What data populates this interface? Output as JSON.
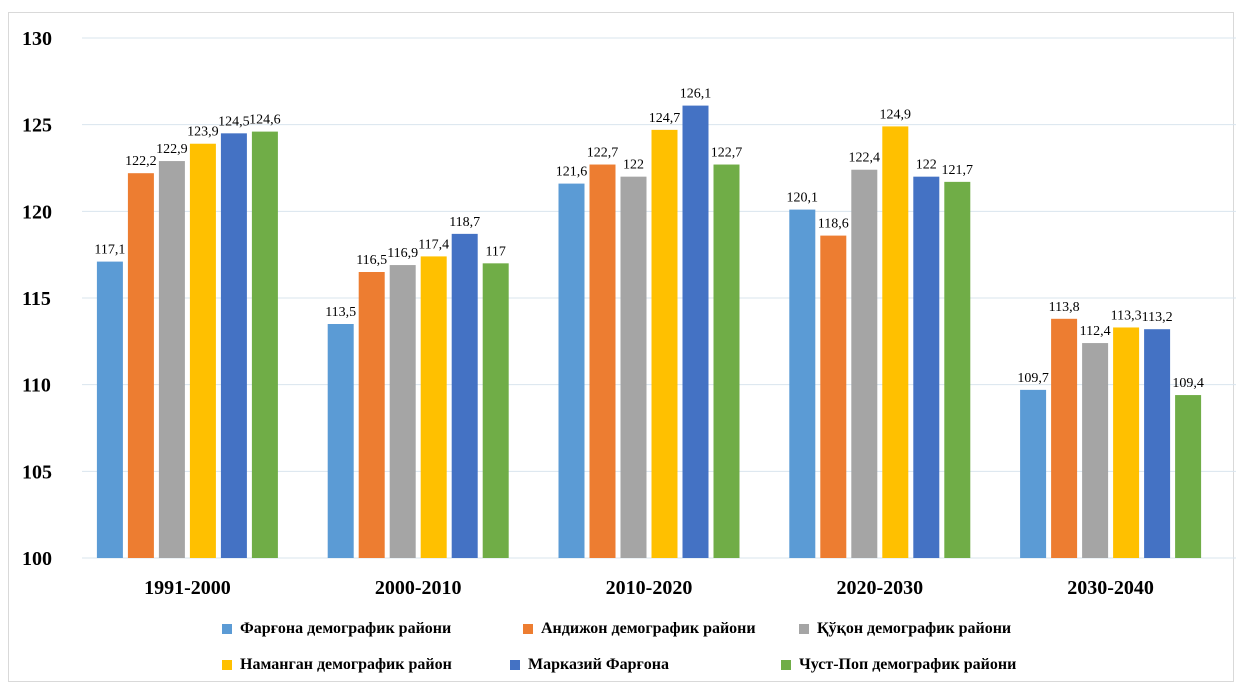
{
  "chart_data": {
    "type": "bar",
    "categories": [
      "1991-2000",
      "2000-2010",
      "2010-2020",
      "2020-2030",
      "2030-2040"
    ],
    "ylim": [
      100,
      130
    ],
    "yticks": [
      "100",
      "105",
      "110",
      "115",
      "120",
      "125",
      "130"
    ],
    "grid": true,
    "legend_position": "bottom",
    "series": [
      {
        "name": "Фарғона демографик райони",
        "color": "#5b9bd5",
        "values": [
          117.1,
          113.5,
          121.6,
          120.1,
          109.7
        ],
        "labels": [
          "117,1",
          "113,5",
          "121,6",
          "120,1",
          "109,7"
        ]
      },
      {
        "name": "Андижон демографик райони",
        "color": "#ed7d31",
        "values": [
          122.2,
          116.5,
          122.7,
          118.6,
          113.8
        ],
        "labels": [
          "122,2",
          "116,5",
          "122,7",
          "118,6",
          "113,8"
        ]
      },
      {
        "name": "Қўқон демографик райони",
        "color": "#a5a5a5",
        "values": [
          122.9,
          116.9,
          122,
          122.4,
          112.4
        ],
        "labels": [
          "122,9",
          "116,9",
          "122",
          "122,4",
          "112,4"
        ]
      },
      {
        "name": "Наманган демографик район",
        "color": "#ffc000",
        "values": [
          123.9,
          117.4,
          124.7,
          124.9,
          113.3
        ],
        "labels": [
          "123,9",
          "117,4",
          "124,7",
          "124,9",
          "113,3"
        ]
      },
      {
        "name": "Марказий Фарғона",
        "color": "#4472c4",
        "values": [
          124.5,
          118.7,
          126.1,
          122,
          113.2
        ],
        "labels": [
          "124,5",
          "118,7",
          "126,1",
          "122",
          "113,2"
        ]
      },
      {
        "name": "Чуст-Поп демографик райони",
        "color": "#70ad47",
        "values": [
          124.6,
          117,
          122.7,
          121.7,
          109.4
        ],
        "labels": [
          "124,6",
          "117",
          "122,7",
          "121,7",
          "109,4"
        ]
      }
    ]
  }
}
